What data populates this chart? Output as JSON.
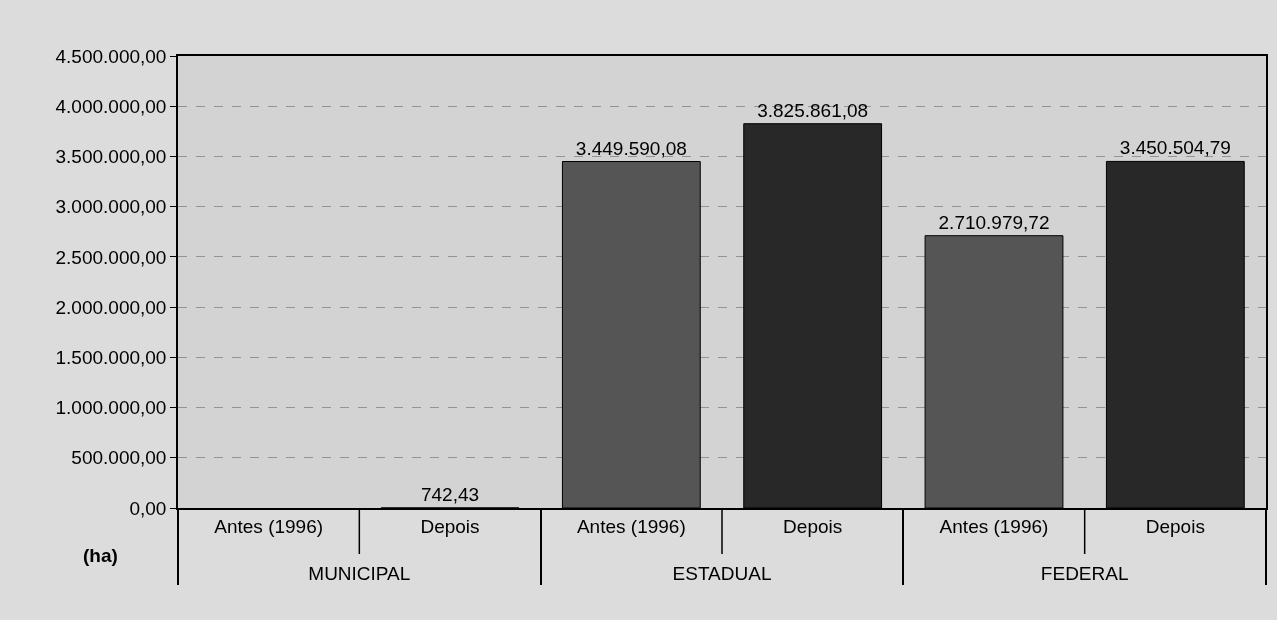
{
  "chart_data": {
    "type": "bar",
    "categories": [
      "MUNICIPAL",
      "ESTADUAL",
      "FEDERAL"
    ],
    "ylabel": "(ha)",
    "series": [
      {
        "name": "Antes (1996)",
        "color": "#555555",
        "values": [
          null,
          3449590.08,
          2710979.72
        ],
        "value_labels": [
          null,
          "3.449.590,08",
          "2.710.979,72"
        ]
      },
      {
        "name": "Depois",
        "color": "#282828",
        "values": [
          742.43,
          3825861.08,
          3450504.79
        ],
        "value_labels": [
          "742,43",
          "3.825.861,08",
          "3.450.504,79"
        ]
      }
    ],
    "ylim": [
      0,
      4500000
    ],
    "yticks": [
      {
        "value": 0,
        "label": "0,00"
      },
      {
        "value": 500000,
        "label": "500.000,00"
      },
      {
        "value": 1000000,
        "label": "1.000.000,00"
      },
      {
        "value": 1500000,
        "label": "1.500.000,00"
      },
      {
        "value": 2000000,
        "label": "2.000.000,00"
      },
      {
        "value": 2500000,
        "label": "2.500.000,00"
      },
      {
        "value": 3000000,
        "label": "3.000.000,00"
      },
      {
        "value": 3500000,
        "label": "3.500.000,00"
      },
      {
        "value": 4000000,
        "label": "4.000.000,00"
      },
      {
        "value": 4500000,
        "label": "4.500.000,00"
      }
    ],
    "grid": "y",
    "legend": false
  }
}
